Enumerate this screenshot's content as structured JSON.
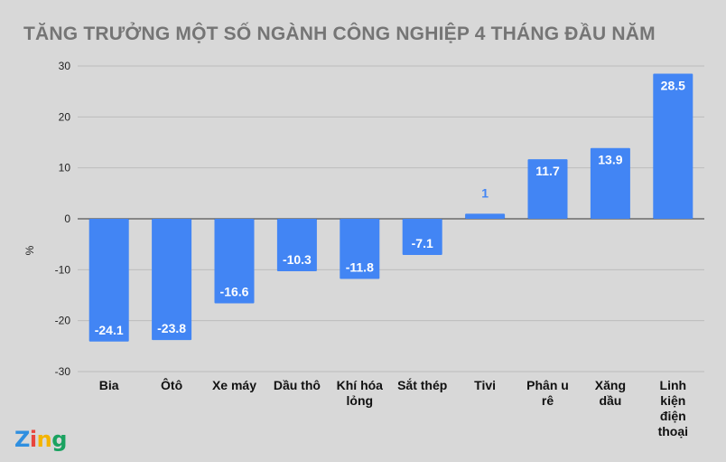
{
  "chart_data": {
    "type": "bar",
    "title": "TĂNG TRƯỞNG MỘT SỐ NGÀNH CÔNG NGHIỆP 4 THÁNG ĐẦU NĂM",
    "xlabel": "",
    "ylabel": "%",
    "ylim": [
      -30,
      30
    ],
    "yticks": [
      30,
      20,
      10,
      0,
      -10,
      -20,
      -30
    ],
    "grid": true,
    "categories": [
      [
        "Bia"
      ],
      [
        "Ôtô"
      ],
      [
        "Xe máy"
      ],
      [
        "Dầu thô"
      ],
      [
        "Khí hóa",
        "lỏng"
      ],
      [
        "Sắt thép"
      ],
      [
        "Tivi"
      ],
      [
        "Phân u",
        "rê"
      ],
      [
        "Xăng",
        "dầu"
      ],
      [
        "Linh",
        "kiện",
        "điện",
        "thoại"
      ]
    ],
    "values": [
      -24.1,
      -23.8,
      -16.6,
      -10.3,
      -11.8,
      -7.1,
      1,
      11.7,
      13.9,
      28.5
    ],
    "bar_color": "#4285f4",
    "label_color_inside": "#ffffff",
    "label_color_outside": "#4285f4"
  },
  "logo": {
    "text": "Zing",
    "colors": [
      "#2f8fe0",
      "#e8453c",
      "#f4b400",
      "#1aa260"
    ]
  }
}
